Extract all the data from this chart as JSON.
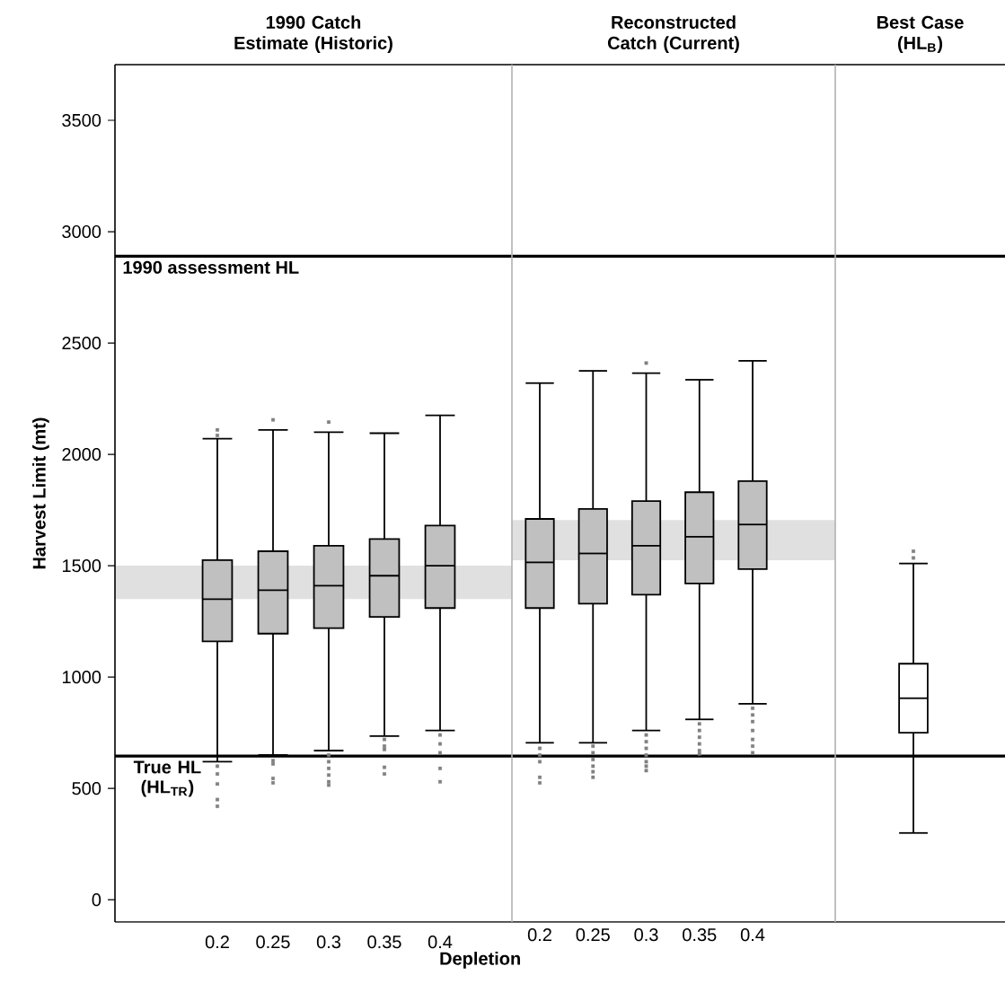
{
  "chart_data": [
    {
      "type": "box",
      "title": "1990 Catch Estimate (Historic)",
      "xlabel": "Depletion",
      "ylabel": "Harvest Limit (mt)",
      "categories": [
        "0.2",
        "0.25",
        "0.3",
        "0.35",
        "0.4"
      ],
      "color": "#c0c0c0",
      "ylim": [
        -100,
        3750
      ],
      "yticks": [
        0,
        500,
        1000,
        1500,
        2000,
        2500,
        3000,
        3500
      ],
      "boxes": [
        {
          "low": 620,
          "q1": 1160,
          "median": 1350,
          "q3": 1525,
          "high": 2070,
          "outliers": [
            2110,
            2085,
            600,
            565,
            520,
            450,
            420
          ]
        },
        {
          "low": 650,
          "q1": 1195,
          "median": 1390,
          "q3": 1565,
          "high": 2110,
          "outliers": [
            2155,
            625,
            610,
            545,
            525
          ]
        },
        {
          "low": 670,
          "q1": 1220,
          "median": 1410,
          "q3": 1590,
          "high": 2100,
          "outliers": [
            2145,
            650,
            620,
            590,
            560,
            530,
            515
          ]
        },
        {
          "low": 735,
          "q1": 1270,
          "median": 1455,
          "q3": 1620,
          "high": 2095,
          "outliers": [
            720,
            690,
            675,
            595,
            565
          ]
        },
        {
          "low": 760,
          "q1": 1310,
          "median": 1500,
          "q3": 1680,
          "high": 2175,
          "outliers": [
            740,
            700,
            660,
            590,
            530
          ]
        }
      ],
      "bands": [
        {
          "axis": "y",
          "from": 1350,
          "to": 1500,
          "color": "#e0e0e0"
        }
      ],
      "ref_lines": [
        {
          "axis": "y",
          "value": 2890,
          "label": "1990 assessment HL",
          "color": "#000000"
        },
        {
          "axis": "y",
          "value": 645,
          "label": "True HL (HL$_{TR}$)",
          "color": "#000000"
        }
      ]
    },
    {
      "type": "box",
      "title": "Reconstructed Catch (Current)",
      "categories": [
        "0.2",
        "0.25",
        "0.3",
        "0.35",
        "0.4"
      ],
      "color": "#c0c0c0",
      "ylim": [
        -100,
        3750
      ],
      "tick_labels": "x",
      "boxes": [
        {
          "low": 705,
          "q1": 1310,
          "median": 1515,
          "q3": 1710,
          "high": 2320,
          "outliers": [
            680,
            650,
            620,
            550,
            525
          ]
        },
        {
          "low": 705,
          "q1": 1330,
          "median": 1555,
          "q3": 1755,
          "high": 2375,
          "outliers": [
            690,
            660,
            630,
            600,
            575,
            550
          ]
        },
        {
          "low": 760,
          "q1": 1370,
          "median": 1590,
          "q3": 1790,
          "high": 2365,
          "outliers": [
            2410,
            740,
            710,
            680,
            650,
            620,
            600,
            580
          ]
        },
        {
          "low": 810,
          "q1": 1420,
          "median": 1630,
          "q3": 1830,
          "high": 2335,
          "outliers": [
            790,
            760,
            730,
            700,
            670,
            655
          ]
        },
        {
          "low": 880,
          "q1": 1485,
          "median": 1685,
          "q3": 1880,
          "high": 2420,
          "outliers": [
            860,
            830,
            800,
            760,
            720,
            690,
            660
          ]
        }
      ],
      "bands": [
        {
          "axis": "y",
          "from": 1525,
          "to": 1705,
          "color": "#e0e0e0"
        }
      ],
      "ref_lines": [
        {
          "axis": "y",
          "value": 2890,
          "color": "#000000"
        },
        {
          "axis": "y",
          "value": 645,
          "color": "#000000"
        }
      ]
    },
    {
      "type": "box",
      "title": "Best Case (HL$_{B}$)",
      "categories": [
        null
      ],
      "color": "#ffffff",
      "ylim": [
        -100,
        3750
      ],
      "tick_labels": false,
      "boxes": [
        {
          "low": 300,
          "q1": 750,
          "median": 905,
          "q3": 1060,
          "high": 1510,
          "outliers": [
            1565,
            1535
          ]
        }
      ],
      "ref_lines": [
        {
          "axis": "y",
          "value": 2890,
          "color": "#000000"
        },
        {
          "axis": "y",
          "value": 645,
          "color": "#000000"
        }
      ]
    }
  ]
}
